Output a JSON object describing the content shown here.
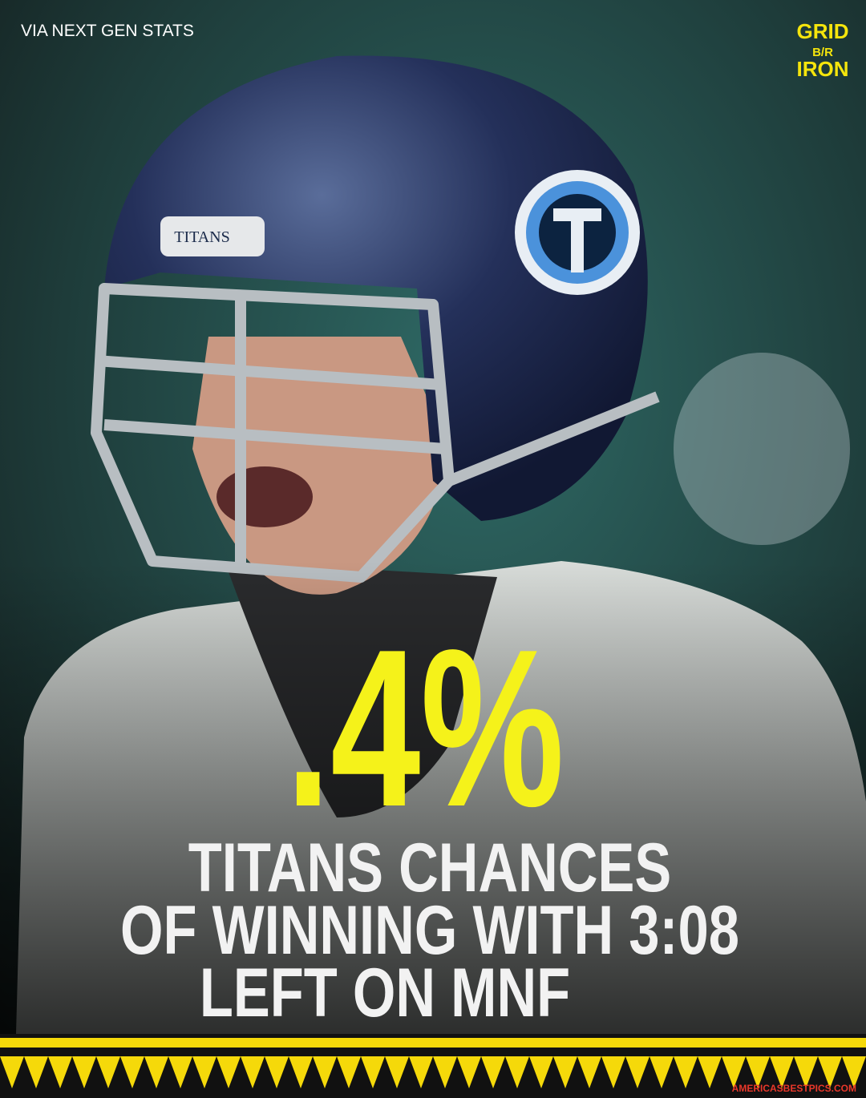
{
  "source": "VIA NEXT GEN STATS",
  "logo": {
    "top": "GRID",
    "middle": "B/R",
    "bottom": "IRON"
  },
  "stat": ".4%",
  "caption": [
    "TITANS CHANCES",
    "OF WINNING WITH 3:08",
    "LEFT ON MNF"
  ],
  "helmet_text": "TITANS",
  "watermark": "AMERICASBESTPICS.COM"
}
